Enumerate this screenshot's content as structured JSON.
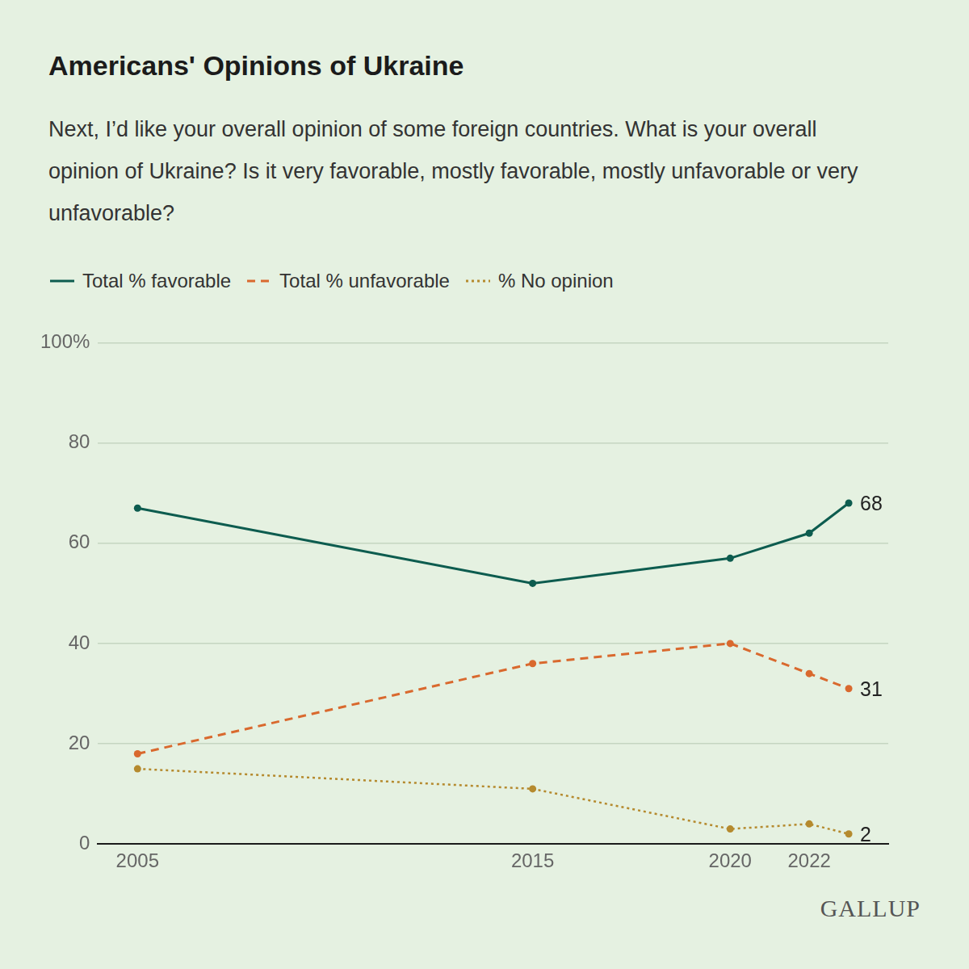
{
  "chart_data": {
    "type": "line",
    "title": "Americans' Opinions of Ukraine",
    "subtitle": "Next, I’d like your overall opinion of some foreign countries. What is your overall opinion of Ukraine? Is it very favorable, mostly favorable, mostly unfavorable or very unfavorable?",
    "credit": "GALLUP",
    "x": [
      2005,
      2015,
      2020,
      2022,
      2023
    ],
    "xlim": [
      2004,
      2024
    ],
    "xticks": [
      2005,
      2015,
      2020,
      2022
    ],
    "ylim": [
      0,
      100
    ],
    "yticks": [
      0,
      20,
      40,
      60,
      80,
      {
        "value": 100,
        "label": "100%"
      }
    ],
    "grid": true,
    "legend": "top-left",
    "series": [
      {
        "name": "Total % favorable",
        "color": "#0d5c4f",
        "line_style": "solid",
        "marker": "circle",
        "values": [
          67,
          52,
          57,
          62,
          68
        ],
        "value_labels": [
          null,
          null,
          null,
          null,
          "68"
        ]
      },
      {
        "name": "Total % unfavorable",
        "color": "#d9692e",
        "line_style": "dashed",
        "marker": "circle",
        "values": [
          18,
          36,
          40,
          34,
          31
        ],
        "value_labels": [
          null,
          null,
          null,
          null,
          "31"
        ]
      },
      {
        "name": "% No opinion",
        "color": "#b58a2e",
        "line_style": "dotted",
        "marker": "circle",
        "values": [
          15,
          11,
          3,
          4,
          2
        ],
        "value_labels": [
          null,
          null,
          null,
          null,
          "2"
        ]
      }
    ]
  }
}
